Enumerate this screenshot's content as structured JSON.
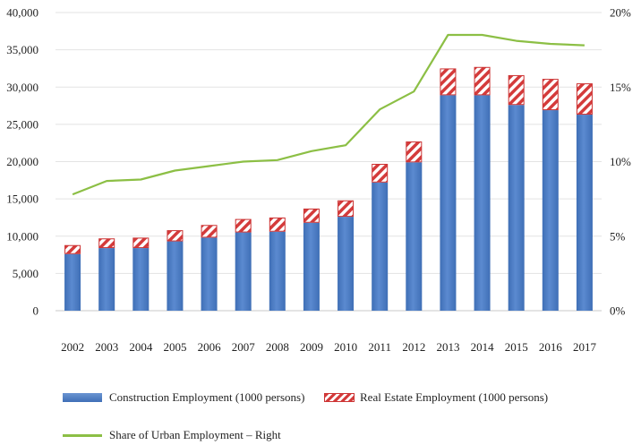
{
  "chart_data": {
    "type": "bar",
    "stacked": true,
    "categories": [
      "2002",
      "2003",
      "2004",
      "2005",
      "2006",
      "2007",
      "2008",
      "2009",
      "2010",
      "2011",
      "2012",
      "2013",
      "2014",
      "2015",
      "2016",
      "2017"
    ],
    "series": [
      {
        "name": "Construction Employment (1000 persons)",
        "axis": "left",
        "type": "bar",
        "color": "#4a7bc0",
        "values": [
          7600,
          8400,
          8400,
          9300,
          9800,
          10500,
          10600,
          11800,
          12600,
          17200,
          19900,
          28900,
          28900,
          27600,
          26900,
          26300
        ]
      },
      {
        "name": "Real Estate Employment (1000 persons)",
        "axis": "left",
        "type": "bar",
        "color": "#d43b3b",
        "values": [
          1200,
          1300,
          1400,
          1500,
          1700,
          1800,
          1900,
          1900,
          2200,
          2500,
          2800,
          3600,
          3800,
          4000,
          4200,
          4200
        ]
      },
      {
        "name": "Share of Urban Employment – Right",
        "axis": "right",
        "type": "line",
        "color": "#8cbf45",
        "values": [
          7.8,
          8.7,
          8.8,
          9.4,
          9.7,
          10.0,
          10.1,
          10.7,
          11.1,
          13.5,
          14.7,
          18.5,
          18.5,
          18.1,
          17.9,
          17.8
        ]
      }
    ],
    "left_axis": {
      "ylim": [
        0,
        40000
      ],
      "ticks": [
        "0",
        "5,000",
        "10,000",
        "15,000",
        "20,000",
        "25,000",
        "30,000",
        "35,000",
        "40,000"
      ]
    },
    "right_axis": {
      "ylim": [
        0,
        20
      ],
      "ticks": [
        "0%",
        "5%",
        "10%",
        "15%",
        "20%"
      ]
    },
    "grid": true,
    "legend_position": "bottom"
  }
}
